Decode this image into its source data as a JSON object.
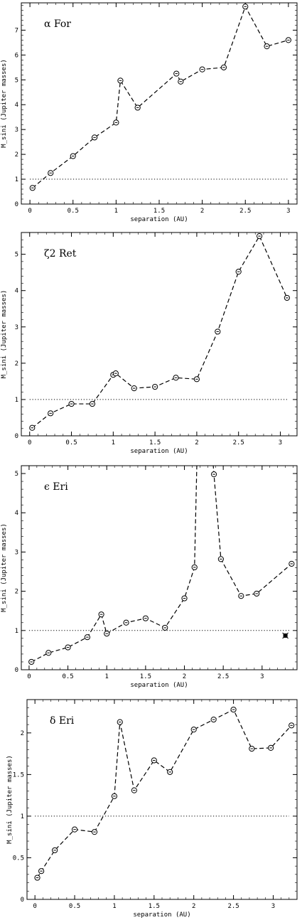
{
  "chart_data": [
    {
      "type": "line",
      "title": "α For",
      "xlabel": "separation (AU)",
      "ylabel": "M_sini (Jupiter masses)",
      "xlim": [
        -0.1,
        3.1
      ],
      "ylim": [
        0,
        8.1
      ],
      "xticks": [
        0,
        0.5,
        1,
        1.5,
        2,
        2.5,
        3
      ],
      "xtick_labels": [
        "0",
        "0.5",
        "1",
        "1.5",
        "2",
        "2.5",
        "3"
      ],
      "yticks": [
        0,
        1,
        2,
        3,
        4,
        5,
        6,
        7
      ],
      "ytick_labels": [
        "0",
        "1",
        "2",
        "3",
        "4",
        "5",
        "6",
        "7"
      ],
      "reference_line": 1,
      "x": [
        0.03,
        0.24,
        0.5,
        0.75,
        1.0,
        1.05,
        1.25,
        1.7,
        1.75,
        2.0,
        2.25,
        2.5,
        2.75,
        3.0
      ],
      "y": [
        0.65,
        1.25,
        1.93,
        2.68,
        3.28,
        4.97,
        3.88,
        5.25,
        4.93,
        5.42,
        5.5,
        7.95,
        6.35,
        6.6
      ]
    },
    {
      "type": "line",
      "title": "ζ2 Ret",
      "xlabel": "separation (AU)",
      "ylabel": "M_sini (Jupiter masses)",
      "xlim": [
        -0.1,
        3.2
      ],
      "ylim": [
        0,
        5.6
      ],
      "xticks": [
        0,
        0.5,
        1,
        1.5,
        2,
        2.5,
        3
      ],
      "xtick_labels": [
        "0",
        "0.5",
        "1",
        "1.5",
        "2",
        "2.5",
        "3"
      ],
      "yticks": [
        0,
        1,
        2,
        3,
        4,
        5
      ],
      "ytick_labels": [
        "0",
        "1",
        "2",
        "3",
        "4",
        "5"
      ],
      "reference_line": 1,
      "x": [
        0.03,
        0.25,
        0.5,
        0.75,
        1.0,
        1.03,
        1.25,
        1.5,
        1.75,
        2.0,
        2.25,
        2.5,
        2.75,
        3.08
      ],
      "y": [
        0.22,
        0.62,
        0.88,
        0.88,
        1.68,
        1.72,
        1.31,
        1.35,
        1.6,
        1.56,
        2.87,
        4.52,
        5.5,
        3.8
      ]
    },
    {
      "type": "line",
      "title": "ϵ Eri",
      "xlabel": "separation (AU)",
      "ylabel": "M_sini (Jupiter masses)",
      "xlim": [
        -0.1,
        3.45
      ],
      "ylim": [
        0,
        5.2
      ],
      "xticks": [
        0,
        0.5,
        1,
        1.5,
        2,
        2.5,
        3
      ],
      "xtick_labels": [
        "0",
        "0.5",
        "1",
        "1.5",
        "2",
        "2.5",
        "3"
      ],
      "yticks": [
        0,
        1,
        2,
        3,
        4,
        5
      ],
      "ytick_labels": [
        "0",
        "1",
        "2",
        "3",
        "4",
        "5"
      ],
      "reference_line": 1,
      "x": [
        0.03,
        0.25,
        0.5,
        0.75,
        0.93,
        1.0,
        1.25,
        1.5,
        1.75,
        2.0,
        2.13,
        2.38,
        2.47,
        2.73,
        2.93,
        3.38
      ],
      "y": [
        0.2,
        0.43,
        0.57,
        0.83,
        1.41,
        0.92,
        1.2,
        1.31,
        1.07,
        1.82,
        2.61,
        4.98,
        2.82,
        1.88,
        1.94,
        2.7
      ],
      "line_break": {
        "after_x": 2.13,
        "before_x": 2.38,
        "up_to_x": 2.16
      },
      "extra_marker": {
        "x": 3.3,
        "y": 0.87
      }
    },
    {
      "type": "line",
      "title": "δ Eri",
      "xlabel": "separation (AU)",
      "ylabel": "M_sini (Jupiter masses)",
      "xlim": [
        -0.1,
        3.3
      ],
      "ylim": [
        0,
        2.4
      ],
      "xticks": [
        0,
        0.5,
        1,
        1.5,
        2,
        2.5,
        3
      ],
      "xtick_labels": [
        "0",
        "0.5",
        "1",
        "1.5",
        "2",
        "2.5",
        "3"
      ],
      "yticks": [
        0,
        0.5,
        1,
        1.5,
        2
      ],
      "ytick_labels": [
        "0",
        "0.5",
        "1",
        "1.5",
        "2"
      ],
      "reference_line": 1,
      "x": [
        0.03,
        0.08,
        0.25,
        0.5,
        0.75,
        1.0,
        1.07,
        1.25,
        1.5,
        1.7,
        2.0,
        2.25,
        2.5,
        2.73,
        2.97,
        3.23
      ],
      "y": [
        0.26,
        0.34,
        0.59,
        0.84,
        0.81,
        1.24,
        2.13,
        1.31,
        1.67,
        1.53,
        2.04,
        2.16,
        2.28,
        1.81,
        1.82,
        2.09
      ]
    }
  ]
}
